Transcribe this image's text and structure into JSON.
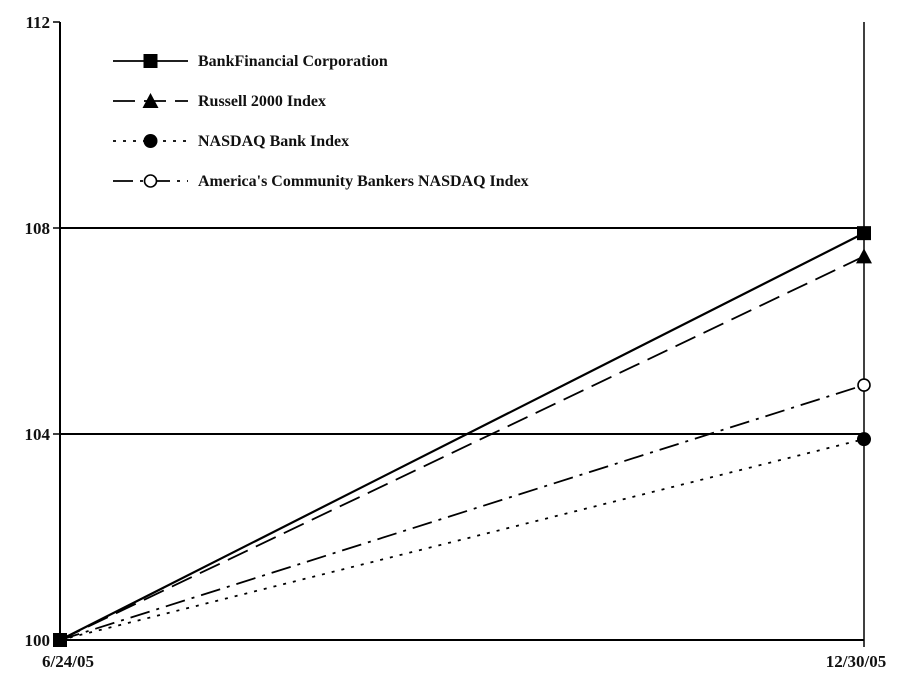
{
  "chart_data": {
    "type": "line",
    "categories": [
      "6/24/05",
      "12/30/05"
    ],
    "series": [
      {
        "name": "BankFinancial Corporation",
        "values": [
          100,
          107.9
        ],
        "marker": "square-filled",
        "dash": "solid"
      },
      {
        "name": "Russell 2000 Index",
        "values": [
          100,
          107.45
        ],
        "marker": "triangle-filled",
        "dash": "long-dash"
      },
      {
        "name": "NASDAQ Bank Index",
        "values": [
          100,
          103.9
        ],
        "marker": "circle-filled",
        "dash": "dotted"
      },
      {
        "name": "America's Community Bankers NASDAQ Index",
        "values": [
          100,
          104.95
        ],
        "marker": "circle-open",
        "dash": "dash-dot"
      }
    ],
    "ylim": [
      100,
      112
    ],
    "yticks": [
      100,
      104,
      108,
      112
    ],
    "grid": true,
    "legend": "top-left",
    "colors": {
      "line": "#000000",
      "background": "#ffffff"
    }
  }
}
